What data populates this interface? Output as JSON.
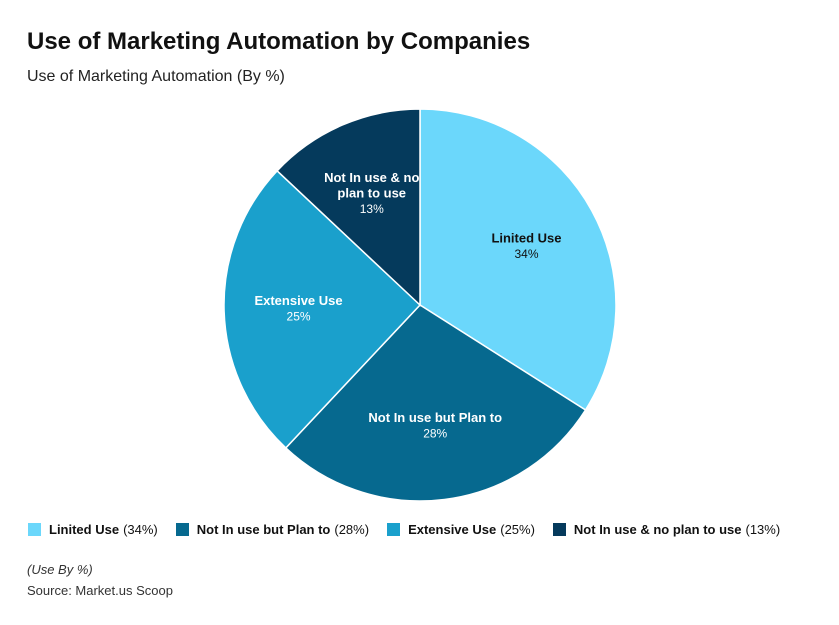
{
  "header": {
    "title": "Use of Marketing Automation by Companies",
    "subtitle": "Use of Marketing Automation (By %)"
  },
  "chart_data": {
    "type": "pie",
    "title": "Use of Marketing Automation (By %)",
    "slices": [
      {
        "name": "Linited Use",
        "legend": "Linited Use",
        "value": 34,
        "label": "34%",
        "legend_value": "(34%)",
        "color": "#6bd7fb"
      },
      {
        "name": "Not In use but Plan to",
        "legend": "Not In use but Plan to",
        "value": 28,
        "label": "28%",
        "legend_value": "(28%)",
        "color": "#06698f"
      },
      {
        "name": "Extensive Use",
        "legend": "Extensive Use",
        "value": 25,
        "label": "25%",
        "legend_value": "(25%)",
        "color": "#1aa0cc"
      },
      {
        "name": "Not In use & no plan to use",
        "legend": "Not In use & no plan to use",
        "value": 13,
        "label": "13%",
        "legend_value": "(13%)",
        "color": "#053a5c"
      }
    ],
    "start_angle": "top",
    "direction": "clockwise",
    "legend_position": "bottom-left"
  },
  "footer": {
    "note": "(Use By %)",
    "source": "Source: Market.us Scoop"
  }
}
